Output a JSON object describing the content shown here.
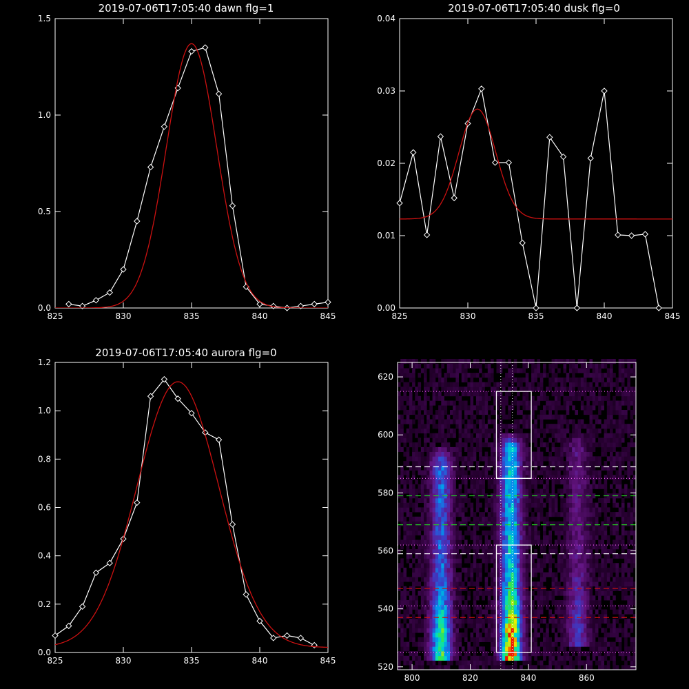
{
  "colors": {
    "background": "#000000",
    "axes": "#ffffff",
    "data_line": "#ffffff",
    "fit_line": "#cc1111",
    "dashed_white": "#ffffff",
    "dashed_green": "#22cc22",
    "dashed_red": "#cc1111",
    "dotted": "#ff66ff"
  },
  "chart_data": [
    {
      "type": "line",
      "title": "2019-07-06T17:05:40 dawn flg=1",
      "xlim": [
        825,
        845
      ],
      "ylim": [
        0,
        1.5
      ],
      "xticks": [
        "825",
        "830",
        "835",
        "840",
        "845"
      ],
      "yticks": [
        "0.0",
        "0.5",
        "1.0",
        "1.5"
      ],
      "xtick_values": [
        825,
        830,
        835,
        840,
        845
      ],
      "ytick_values": [
        0,
        0.5,
        1.0,
        1.5
      ],
      "series": [
        {
          "style": "white-diamonds",
          "x": [
            826,
            827,
            828,
            829,
            830,
            831,
            832,
            833,
            834,
            835,
            836,
            837,
            838,
            839,
            840,
            841,
            842,
            843,
            844,
            845
          ],
          "y": [
            0.02,
            0.01,
            0.04,
            0.08,
            0.2,
            0.45,
            0.73,
            0.94,
            1.14,
            1.33,
            1.35,
            1.11,
            0.53,
            0.11,
            0.02,
            0.01,
            0.0,
            0.01,
            0.02,
            0.03
          ]
        },
        {
          "style": "red-fit",
          "model": "gaussian",
          "center": 835.0,
          "sigma": 1.85,
          "amplitude": 1.37,
          "baseline": 0.0
        }
      ]
    },
    {
      "type": "line",
      "title": "2019-07-06T17:05:40 dusk flg=0",
      "xlim": [
        825,
        845
      ],
      "ylim": [
        0,
        0.04
      ],
      "xticks": [
        "825",
        "830",
        "835",
        "840",
        "845"
      ],
      "yticks": [
        "0.00",
        "0.01",
        "0.02",
        "0.03",
        "0.04"
      ],
      "xtick_values": [
        825,
        830,
        835,
        840,
        845
      ],
      "ytick_values": [
        0,
        0.01,
        0.02,
        0.03,
        0.04
      ],
      "series": [
        {
          "style": "white-diamonds",
          "x": [
            825,
            826,
            827,
            828,
            829,
            830,
            831,
            832,
            833,
            834,
            835,
            836,
            837,
            838,
            839,
            840,
            841,
            842,
            843,
            844
          ],
          "y": [
            0.0145,
            0.0215,
            0.0101,
            0.0237,
            0.0152,
            0.0255,
            0.0303,
            0.0201,
            0.0201,
            0.009,
            0.0,
            0.0236,
            0.0209,
            0.0,
            0.0207,
            0.03,
            0.0101,
            0.01,
            0.0102,
            0.0
          ]
        },
        {
          "style": "red-fit",
          "model": "gaussian",
          "center": 830.7,
          "sigma": 1.35,
          "amplitude": 0.0152,
          "baseline": 0.0123
        }
      ]
    },
    {
      "type": "line",
      "title": "2019-07-06T17:05:40 aurora flg=0",
      "xlim": [
        825,
        845
      ],
      "ylim": [
        0,
        1.2
      ],
      "xticks": [
        "825",
        "830",
        "835",
        "840",
        "845"
      ],
      "yticks": [
        "0.0",
        "0.2",
        "0.4",
        "0.6",
        "0.8",
        "1.0",
        "1.2"
      ],
      "xtick_values": [
        825,
        830,
        835,
        840,
        845
      ],
      "ytick_values": [
        0,
        0.2,
        0.4,
        0.6,
        0.8,
        1.0,
        1.2
      ],
      "series": [
        {
          "style": "white-diamonds",
          "x": [
            825,
            826,
            827,
            828,
            829,
            830,
            831,
            832,
            833,
            834,
            835,
            836,
            837,
            838,
            839,
            840,
            841,
            842,
            843,
            844
          ],
          "y": [
            0.07,
            0.11,
            0.19,
            0.33,
            0.37,
            0.47,
            0.62,
            1.06,
            1.13,
            1.05,
            0.99,
            0.91,
            0.88,
            0.53,
            0.24,
            0.13,
            0.06,
            0.07,
            0.06,
            0.03
          ]
        },
        {
          "style": "red-fit",
          "model": "gaussian",
          "center": 834.0,
          "sigma": 3.0,
          "amplitude": 1.1,
          "baseline": 0.02
        }
      ]
    },
    {
      "type": "heatmap",
      "title": "",
      "xlim": [
        795,
        877
      ],
      "ylim": [
        519,
        625
      ],
      "xticks": [
        "800",
        "820",
        "840",
        "860"
      ],
      "yticks": [
        "520",
        "540",
        "560",
        "580",
        "600",
        "620"
      ],
      "xtick_values": [
        800,
        820,
        840,
        860
      ],
      "ytick_values": [
        520,
        540,
        560,
        580,
        600,
        620
      ],
      "emission_columns": [
        {
          "x_center": 810,
          "y_from": 525,
          "y_to": 590,
          "peak": 0.7
        },
        {
          "x_center": 834,
          "y_from": 525,
          "y_to": 595,
          "peak": 1.0
        },
        {
          "x_center": 857,
          "y_from": 530,
          "y_to": 595,
          "peak": 0.3
        }
      ],
      "boxes": [
        {
          "x": [
            829,
            841
          ],
          "y": [
            585,
            615
          ]
        },
        {
          "x": [
            829,
            841
          ],
          "y": [
            525,
            562
          ]
        }
      ],
      "vlines_dotted": [
        830.5,
        834.5
      ],
      "hlines": [
        {
          "y": 615,
          "style": "dotted"
        },
        {
          "y": 589,
          "style": "dashed-white"
        },
        {
          "y": 585,
          "style": "dotted"
        },
        {
          "y": 579,
          "style": "dashed-green"
        },
        {
          "y": 569,
          "style": "dashed-green"
        },
        {
          "y": 562,
          "style": "dotted"
        },
        {
          "y": 559,
          "style": "dashed-white"
        },
        {
          "y": 547,
          "style": "dashed-red"
        },
        {
          "y": 541,
          "style": "dotted"
        },
        {
          "y": 537,
          "style": "dashed-red"
        },
        {
          "y": 525,
          "style": "dotted"
        }
      ]
    }
  ]
}
